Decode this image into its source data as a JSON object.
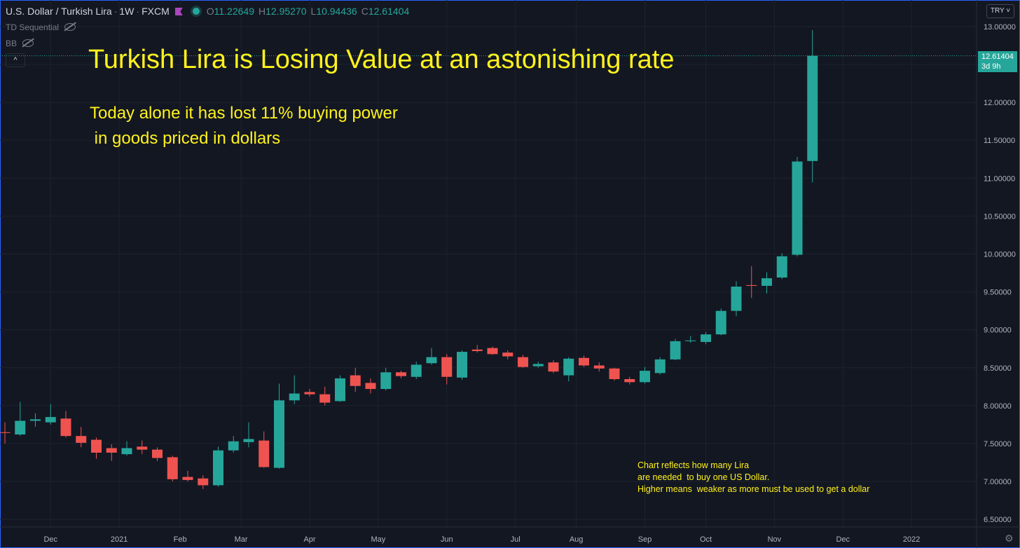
{
  "header": {
    "pair": "U.S. Dollar / Turkish Lira",
    "interval": "1W",
    "exchange": "FXCM",
    "o_label": "O",
    "o_value": "11.22649",
    "h_label": "H",
    "h_value": "12.95270",
    "l_label": "L",
    "l_value": "10.94436",
    "c_label": "C",
    "c_value": "12.61404"
  },
  "indicators": {
    "td": "TD Sequential",
    "bb": "BB"
  },
  "controls": {
    "collapse": "^",
    "currency": "TRY",
    "gear": "⚙"
  },
  "annotations": {
    "title": "Turkish Lira is Losing Value  at an astonishing rate",
    "sub": "Today alone it has lost 11% buying power\n in goods priced in dollars",
    "note": "Chart reflects how many Lira\nare needed  to buy one US Dollar.\nHigher means  weaker as more must be used to get a dollar"
  },
  "price_tag": {
    "price": "12.61404",
    "countdown": "3d 9h"
  },
  "colors": {
    "up": "#26a69a",
    "down": "#ef5350",
    "background": "#131722",
    "text": "#fff21c",
    "grid": "#1e222d"
  },
  "chart_data": {
    "type": "candlestick",
    "title": "",
    "xlabel": "",
    "ylabel": "",
    "ylim": [
      6.4,
      13.35
    ],
    "y_ticks": [
      "6.50000",
      "7.00000",
      "7.50000",
      "8.00000",
      "8.50000",
      "9.00000",
      "9.50000",
      "10.00000",
      "10.50000",
      "11.00000",
      "11.50000",
      "12.00000",
      "12.50000",
      "13.00000"
    ],
    "x_ticks": [
      {
        "label": "Dec",
        "after_candle": 3
      },
      {
        "label": "2021",
        "after_candle": 7.5
      },
      {
        "label": "Feb",
        "after_candle": 11.5
      },
      {
        "label": "Mar",
        "after_candle": 15.5
      },
      {
        "label": "Apr",
        "after_candle": 20
      },
      {
        "label": "May",
        "after_candle": 24.5
      },
      {
        "label": "Jun",
        "after_candle": 29
      },
      {
        "label": "Jul",
        "after_candle": 33.5
      },
      {
        "label": "Aug",
        "after_candle": 37.5
      },
      {
        "label": "Sep",
        "after_candle": 42
      },
      {
        "label": "Oct",
        "after_candle": 46
      },
      {
        "label": "Nov",
        "after_candle": 50.5
      },
      {
        "label": "Dec",
        "after_candle": 55
      },
      {
        "label": "2022",
        "after_candle": 59.5
      }
    ],
    "candles": [
      {
        "o": 7.65,
        "h": 7.78,
        "l": 7.5,
        "c": 7.64
      },
      {
        "o": 7.62,
        "h": 8.05,
        "l": 7.6,
        "c": 7.8
      },
      {
        "o": 7.8,
        "h": 7.9,
        "l": 7.72,
        "c": 7.82
      },
      {
        "o": 7.78,
        "h": 8.02,
        "l": 7.75,
        "c": 7.85
      },
      {
        "o": 7.83,
        "h": 7.93,
        "l": 7.58,
        "c": 7.6
      },
      {
        "o": 7.6,
        "h": 7.72,
        "l": 7.45,
        "c": 7.51
      },
      {
        "o": 7.55,
        "h": 7.58,
        "l": 7.3,
        "c": 7.38
      },
      {
        "o": 7.44,
        "h": 7.49,
        "l": 7.27,
        "c": 7.38
      },
      {
        "o": 7.36,
        "h": 7.53,
        "l": 7.34,
        "c": 7.44
      },
      {
        "o": 7.46,
        "h": 7.54,
        "l": 7.36,
        "c": 7.42
      },
      {
        "o": 7.42,
        "h": 7.45,
        "l": 7.27,
        "c": 7.31
      },
      {
        "o": 7.32,
        "h": 7.34,
        "l": 7.0,
        "c": 7.03
      },
      {
        "o": 7.06,
        "h": 7.14,
        "l": 7.0,
        "c": 7.02
      },
      {
        "o": 7.04,
        "h": 7.08,
        "l": 6.9,
        "c": 6.95
      },
      {
        "o": 6.95,
        "h": 7.46,
        "l": 6.93,
        "c": 7.41
      },
      {
        "o": 7.41,
        "h": 7.6,
        "l": 7.38,
        "c": 7.53
      },
      {
        "o": 7.52,
        "h": 7.78,
        "l": 7.45,
        "c": 7.56
      },
      {
        "o": 7.54,
        "h": 7.66,
        "l": 7.18,
        "c": 7.19
      },
      {
        "o": 7.18,
        "h": 8.29,
        "l": 7.17,
        "c": 8.07
      },
      {
        "o": 8.07,
        "h": 8.4,
        "l": 8.02,
        "c": 8.16
      },
      {
        "o": 8.18,
        "h": 8.22,
        "l": 8.12,
        "c": 8.15
      },
      {
        "o": 8.15,
        "h": 8.25,
        "l": 8.0,
        "c": 8.04
      },
      {
        "o": 8.06,
        "h": 8.4,
        "l": 8.05,
        "c": 8.36
      },
      {
        "o": 8.4,
        "h": 8.5,
        "l": 8.18,
        "c": 8.26
      },
      {
        "o": 8.3,
        "h": 8.36,
        "l": 8.16,
        "c": 8.22
      },
      {
        "o": 8.22,
        "h": 8.5,
        "l": 8.2,
        "c": 8.44
      },
      {
        "o": 8.44,
        "h": 8.46,
        "l": 8.36,
        "c": 8.39
      },
      {
        "o": 8.38,
        "h": 8.58,
        "l": 8.35,
        "c": 8.54
      },
      {
        "o": 8.56,
        "h": 8.76,
        "l": 8.54,
        "c": 8.64
      },
      {
        "o": 8.64,
        "h": 8.68,
        "l": 8.28,
        "c": 8.38
      },
      {
        "o": 8.37,
        "h": 8.73,
        "l": 8.34,
        "c": 8.71
      },
      {
        "o": 8.74,
        "h": 8.8,
        "l": 8.7,
        "c": 8.72
      },
      {
        "o": 8.76,
        "h": 8.78,
        "l": 8.67,
        "c": 8.68
      },
      {
        "o": 8.7,
        "h": 8.73,
        "l": 8.61,
        "c": 8.65
      },
      {
        "o": 8.64,
        "h": 8.67,
        "l": 8.5,
        "c": 8.51
      },
      {
        "o": 8.52,
        "h": 8.58,
        "l": 8.5,
        "c": 8.55
      },
      {
        "o": 8.57,
        "h": 8.6,
        "l": 8.43,
        "c": 8.45
      },
      {
        "o": 8.4,
        "h": 8.64,
        "l": 8.32,
        "c": 8.62
      },
      {
        "o": 8.63,
        "h": 8.66,
        "l": 8.51,
        "c": 8.53
      },
      {
        "o": 8.53,
        "h": 8.57,
        "l": 8.45,
        "c": 8.49
      },
      {
        "o": 8.49,
        "h": 8.5,
        "l": 8.33,
        "c": 8.35
      },
      {
        "o": 8.35,
        "h": 8.38,
        "l": 8.28,
        "c": 8.31
      },
      {
        "o": 8.31,
        "h": 8.51,
        "l": 8.29,
        "c": 8.46
      },
      {
        "o": 8.43,
        "h": 8.64,
        "l": 8.41,
        "c": 8.61
      },
      {
        "o": 8.61,
        "h": 8.88,
        "l": 8.6,
        "c": 8.85
      },
      {
        "o": 8.85,
        "h": 8.92,
        "l": 8.83,
        "c": 8.86
      },
      {
        "o": 8.84,
        "h": 8.97,
        "l": 8.81,
        "c": 8.94
      },
      {
        "o": 8.94,
        "h": 9.28,
        "l": 8.93,
        "c": 9.25
      },
      {
        "o": 9.25,
        "h": 9.64,
        "l": 9.18,
        "c": 9.57
      },
      {
        "o": 9.59,
        "h": 9.84,
        "l": 9.42,
        "c": 9.58
      },
      {
        "o": 9.58,
        "h": 9.76,
        "l": 9.48,
        "c": 9.68
      },
      {
        "o": 9.69,
        "h": 10.01,
        "l": 9.67,
        "c": 9.97
      },
      {
        "o": 9.99,
        "h": 11.28,
        "l": 9.97,
        "c": 11.22
      },
      {
        "o": 11.22649,
        "h": 12.9527,
        "l": 10.94436,
        "c": 12.61404
      }
    ]
  }
}
